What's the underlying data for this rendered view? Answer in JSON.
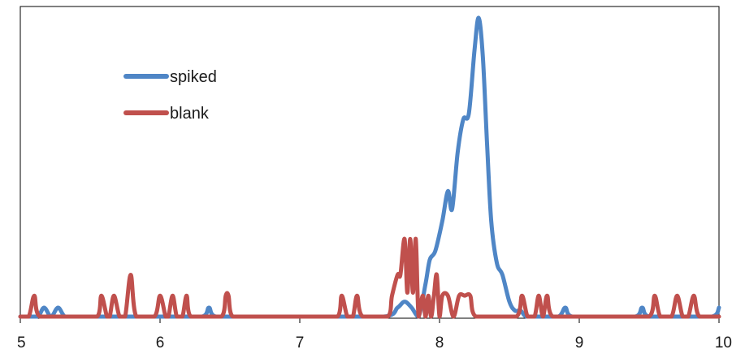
{
  "chart_data": {
    "type": "line",
    "title": "",
    "xlabel": "",
    "ylabel": "",
    "xlim": [
      5,
      10
    ],
    "ylim": [
      0,
      100
    ],
    "xticks": [
      "5",
      "6",
      "7",
      "8",
      "9",
      "10"
    ],
    "grid": false,
    "legend_position": "top-left",
    "series": [
      {
        "name": "spiked",
        "color": "#4f86c6",
        "x": [
          5.0,
          5.12,
          5.17,
          5.22,
          5.27,
          5.32,
          5.4,
          6.3,
          6.35,
          6.4,
          7.6,
          7.7,
          7.75,
          7.8,
          7.85,
          7.9,
          7.93,
          7.97,
          8.02,
          8.06,
          8.09,
          8.13,
          8.17,
          8.21,
          8.25,
          8.28,
          8.31,
          8.34,
          8.37,
          8.41,
          8.45,
          8.5,
          8.54,
          8.58,
          8.62,
          8.7,
          8.85,
          8.9,
          8.95,
          9.4,
          9.45,
          9.5,
          9.95,
          10.0
        ],
        "y": [
          0,
          0,
          3,
          0,
          3,
          0,
          0,
          0,
          3,
          0,
          0,
          3,
          5,
          3,
          0,
          11,
          19,
          22,
          32,
          42,
          36,
          55,
          66,
          68,
          89,
          100,
          87,
          58,
          32,
          18,
          14,
          5,
          2,
          2,
          0,
          0,
          0,
          3,
          0,
          0,
          3,
          0,
          0,
          3
        ]
      },
      {
        "name": "blank",
        "color": "#c0504d",
        "x": [
          5.0,
          5.06,
          5.1,
          5.14,
          5.55,
          5.58,
          5.62,
          5.64,
          5.67,
          5.71,
          5.75,
          5.79,
          5.83,
          5.96,
          6.0,
          6.04,
          6.06,
          6.09,
          6.12,
          6.16,
          6.19,
          6.22,
          6.44,
          6.47,
          6.49,
          6.52,
          7.27,
          7.3,
          7.34,
          7.38,
          7.41,
          7.45,
          7.63,
          7.66,
          7.7,
          7.72,
          7.75,
          7.77,
          7.79,
          7.81,
          7.83,
          7.85,
          7.88,
          7.9,
          7.92,
          7.94,
          7.96,
          7.98,
          8.0,
          8.02,
          8.06,
          8.1,
          8.14,
          8.18,
          8.22,
          8.26,
          8.55,
          8.59,
          8.63,
          8.68,
          8.71,
          8.74,
          8.77,
          8.81,
          9.5,
          9.54,
          9.58,
          9.66,
          9.7,
          9.74,
          9.78,
          9.82,
          9.86,
          10.0
        ],
        "y": [
          0,
          0,
          7,
          0,
          0,
          7,
          0,
          0,
          7,
          0,
          0,
          14,
          0,
          0,
          7,
          0,
          0,
          7,
          0,
          0,
          7,
          0,
          0,
          7,
          7,
          0,
          0,
          7,
          0,
          0,
          7,
          0,
          0,
          7,
          14,
          14,
          26,
          8,
          26,
          8,
          26,
          0,
          7,
          0,
          7,
          0,
          7,
          14,
          0,
          7,
          7,
          0,
          7,
          7,
          7,
          0,
          0,
          7,
          0,
          0,
          7,
          0,
          7,
          0,
          0,
          7,
          0,
          0,
          7,
          0,
          0,
          7,
          0,
          0
        ]
      }
    ]
  }
}
